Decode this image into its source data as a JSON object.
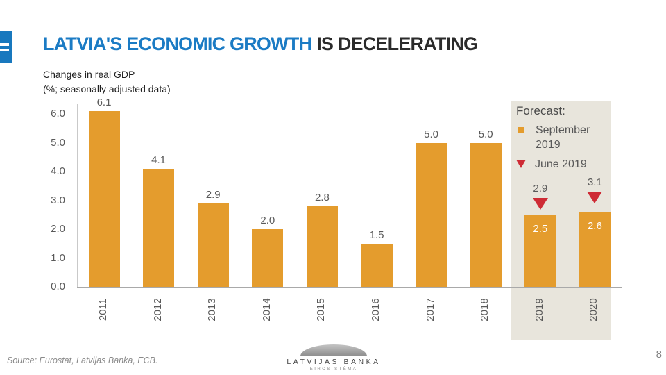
{
  "header": {
    "title_accent": "LATVIA'S ECONOMIC GROWTH",
    "title_rest": "IS DECELERATING",
    "subtitle_line1": "Changes in real GDP",
    "subtitle_line2": "(%; seasonally adjusted data)"
  },
  "chart_data": {
    "type": "bar",
    "title": "Changes in real GDP",
    "subtitle": "(%; seasonally adjusted data)",
    "categories": [
      "2011",
      "2012",
      "2013",
      "2014",
      "2015",
      "2016",
      "2017",
      "2018",
      "2019",
      "2020"
    ],
    "series": [
      {
        "name": "September 2019",
        "type": "bar",
        "marker": "orange-square",
        "values": [
          6.1,
          4.1,
          2.9,
          2.0,
          2.8,
          1.5,
          5.0,
          5.0,
          2.5,
          2.6
        ]
      },
      {
        "name": "June 2019",
        "type": "marker",
        "marker": "red-triangle",
        "values": [
          null,
          null,
          null,
          null,
          null,
          null,
          null,
          null,
          2.9,
          3.1
        ]
      }
    ],
    "forecast_categories": [
      "2019",
      "2020"
    ],
    "yticks": [
      "0.0",
      "1.0",
      "2.0",
      "3.0",
      "4.0",
      "5.0",
      "6.0"
    ],
    "ylim": [
      0,
      6.5
    ],
    "grid": false,
    "legend": {
      "title": "Forecast:",
      "entries": [
        {
          "label": "September 2019",
          "marker": "orange-square"
        },
        {
          "label": "June 2019",
          "marker": "red-triangle"
        }
      ],
      "position": "top-right"
    },
    "colors": {
      "bar": "#E49C2D",
      "marker": "#CE2B35",
      "forecast_bg": "#E8E5DC",
      "title_accent": "#1B7BC4",
      "label": "#595959"
    }
  },
  "footer": {
    "source": "Source: Eurostat, Latvijas Banka, ECB.",
    "logo_top": "LATVIJAS BANKA",
    "logo_bottom": "EIROSISTĒMA",
    "page_number": "8"
  }
}
